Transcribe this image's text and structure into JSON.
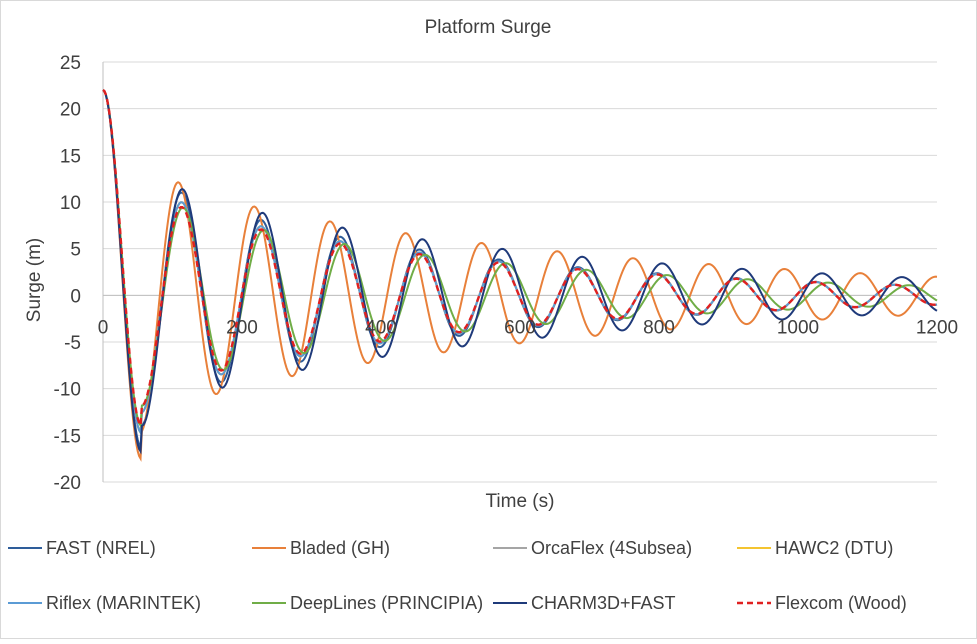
{
  "chart_data": {
    "type": "line",
    "title": "Platform Surge",
    "xlabel": "Time (s)",
    "ylabel": "Surge (m)",
    "xlim": [
      0,
      1200
    ],
    "ylim": [
      -20,
      25
    ],
    "x_ticks": [
      0,
      200,
      400,
      600,
      800,
      1000,
      1200
    ],
    "y_ticks": [
      25,
      20,
      15,
      10,
      5,
      0,
      -5,
      -10,
      -15,
      -20
    ],
    "grid": "horizontal",
    "legend_position": "bottom",
    "series": [
      {
        "name": "FAST (NREL)",
        "color": "#2e5d9a",
        "dash": false,
        "x0": 22,
        "t_peak": 0,
        "period": 114,
        "amp_first_peak": 10.5,
        "amp_second_trough": -8.5,
        "amp_last": 1.0,
        "decay_note": "damped oscillation"
      },
      {
        "name": "Bladed (GH)",
        "color": "#e8803a",
        "dash": false,
        "x0": 22,
        "period": 109,
        "amp_first_peak": 11.3,
        "amp_last": 2.0
      },
      {
        "name": "OrcaFlex (4Subsea)",
        "color": "#a5a5a5",
        "dash": false,
        "x0": 22,
        "period": 114,
        "amp_first_peak": 9.5,
        "amp_last": 1.0
      },
      {
        "name": "HAWC2 (DTU)",
        "color": "#f4c430",
        "dash": false,
        "x0": 22,
        "period": 114,
        "amp_first_peak": 9.5,
        "amp_last": 1.0
      },
      {
        "name": "Riflex (MARINTEK)",
        "color": "#5b9bd5",
        "dash": false,
        "x0": 22,
        "period": 114,
        "amp_first_peak": 9.5,
        "amp_last": 1.0
      },
      {
        "name": "DeepLines (PRINCIPIA)",
        "color": "#70ad47",
        "dash": false,
        "x0": 22,
        "period": 116,
        "amp_first_peak": 9.0,
        "amp_last": 1.0
      },
      {
        "name": "CHARM3D+FAST",
        "color": "#1f3a7a",
        "dash": false,
        "x0": 22,
        "period": 115,
        "amp_first_peak": 10.8,
        "amp_last": 1.8
      },
      {
        "name": "Flexcom (Wood)",
        "color": "#e02020",
        "dash": true,
        "x0": 22,
        "period": 114,
        "amp_first_peak": 9.0,
        "amp_last": 1.0
      }
    ]
  }
}
